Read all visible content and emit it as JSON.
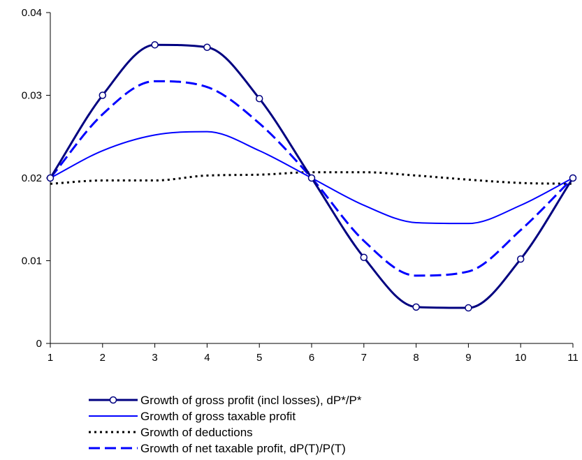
{
  "chart_data": {
    "type": "line",
    "title": "",
    "xlabel": "",
    "ylabel": "",
    "x": [
      1,
      2,
      3,
      4,
      5,
      6,
      7,
      8,
      9,
      10,
      11
    ],
    "x_ticks": [
      "1",
      "2",
      "3",
      "4",
      "5",
      "6",
      "7",
      "8",
      "9",
      "10",
      "11"
    ],
    "xlim": [
      1,
      11
    ],
    "ylim": [
      0,
      0.04
    ],
    "y_ticks": [
      "0",
      "0.01",
      "0.02",
      "0.03",
      "0.04"
    ],
    "grid": false,
    "legend_position": "bottom",
    "series": [
      {
        "name": "Growth of gross profit (incl losses), dP*/P*",
        "color": "#000080",
        "style": "solid-markers",
        "values": [
          0.02,
          0.03,
          0.0361,
          0.0358,
          0.0296,
          0.02,
          0.0104,
          0.0044,
          0.0043,
          0.0102,
          0.02
        ]
      },
      {
        "name": "Growth of gross taxable profit",
        "color": "#0000FF",
        "style": "solid",
        "values": [
          0.02,
          0.0233,
          0.0252,
          0.0256,
          0.0233,
          0.02,
          0.0167,
          0.0146,
          0.0145,
          0.0167,
          0.02
        ]
      },
      {
        "name": "Growth of deductions",
        "color": "#000000",
        "style": "dotted",
        "values": [
          0.0193,
          0.0197,
          0.0197,
          0.0203,
          0.0204,
          0.0207,
          0.0207,
          0.0203,
          0.0198,
          0.0194,
          0.0193
        ]
      },
      {
        "name": "Growth of net taxable profit, dP(T)/P(T)",
        "color": "#0000FF",
        "style": "dashed",
        "values": [
          0.02,
          0.0277,
          0.0317,
          0.031,
          0.0266,
          0.02,
          0.0124,
          0.0082,
          0.0087,
          0.0137,
          0.02
        ]
      }
    ]
  }
}
